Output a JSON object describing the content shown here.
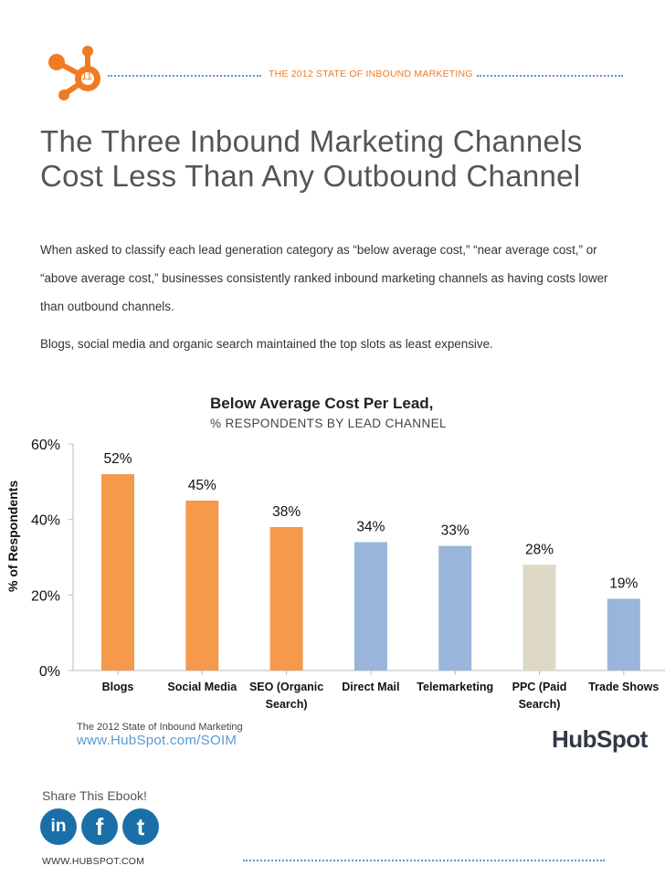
{
  "header": {
    "page_number": "11",
    "title": "THE 2012 STATE OF INBOUND MARKETING"
  },
  "page": {
    "title": "The Three Inbound Marketing Channels Cost Less Than Any Outbound Channel",
    "paragraph1": "When asked to classify each lead generation category as “below average cost,” “near average cost,” or “above average cost,” businesses consistently ranked inbound marketing channels as having costs lower than outbound channels.",
    "paragraph2": "Blogs, social media and organic search maintained the top slots as least expensive."
  },
  "chart_data": {
    "type": "bar",
    "title": "Below Average Cost Per Lead,",
    "subtitle": "% RESPONDENTS BY LEAD CHANNEL",
    "ylabel": "% of Respondents",
    "xlabel": "",
    "ylim": [
      0,
      60
    ],
    "yticks": [
      "0%",
      "20%",
      "40%",
      "60%"
    ],
    "categories": [
      [
        "Blogs"
      ],
      [
        "Social Media"
      ],
      [
        "SEO (Organic",
        "Search)"
      ],
      [
        "Direct Mail"
      ],
      [
        "Telemarketing"
      ],
      [
        "PPC (Paid",
        "Search)"
      ],
      [
        "Trade Shows"
      ]
    ],
    "values": [
      52,
      45,
      38,
      34,
      33,
      28,
      19
    ],
    "value_labels": [
      "52%",
      "45%",
      "38%",
      "34%",
      "33%",
      "28%",
      "19%"
    ],
    "bar_colors": [
      "#f59a4c",
      "#f59a4c",
      "#f59a4c",
      "#99b5d9",
      "#99b5d9",
      "#ddd9c4",
      "#99b5d9"
    ],
    "grid": false,
    "legend": "none"
  },
  "source": {
    "text": "The 2012 State of Inbound Marketing",
    "url": "www.HubSpot.com/SOIM"
  },
  "brand": {
    "name": "HubSpot",
    "accent": "#f07b22",
    "blue": "#5a9bd5"
  },
  "share": {
    "label": "Share This Ebook!",
    "icons": [
      "linkedin-icon",
      "facebook-icon",
      "twitter-icon"
    ],
    "linkedin": "in",
    "facebook": "f",
    "twitter": "t"
  },
  "footer": {
    "url": "WWW.HUBSPOT.COM"
  }
}
